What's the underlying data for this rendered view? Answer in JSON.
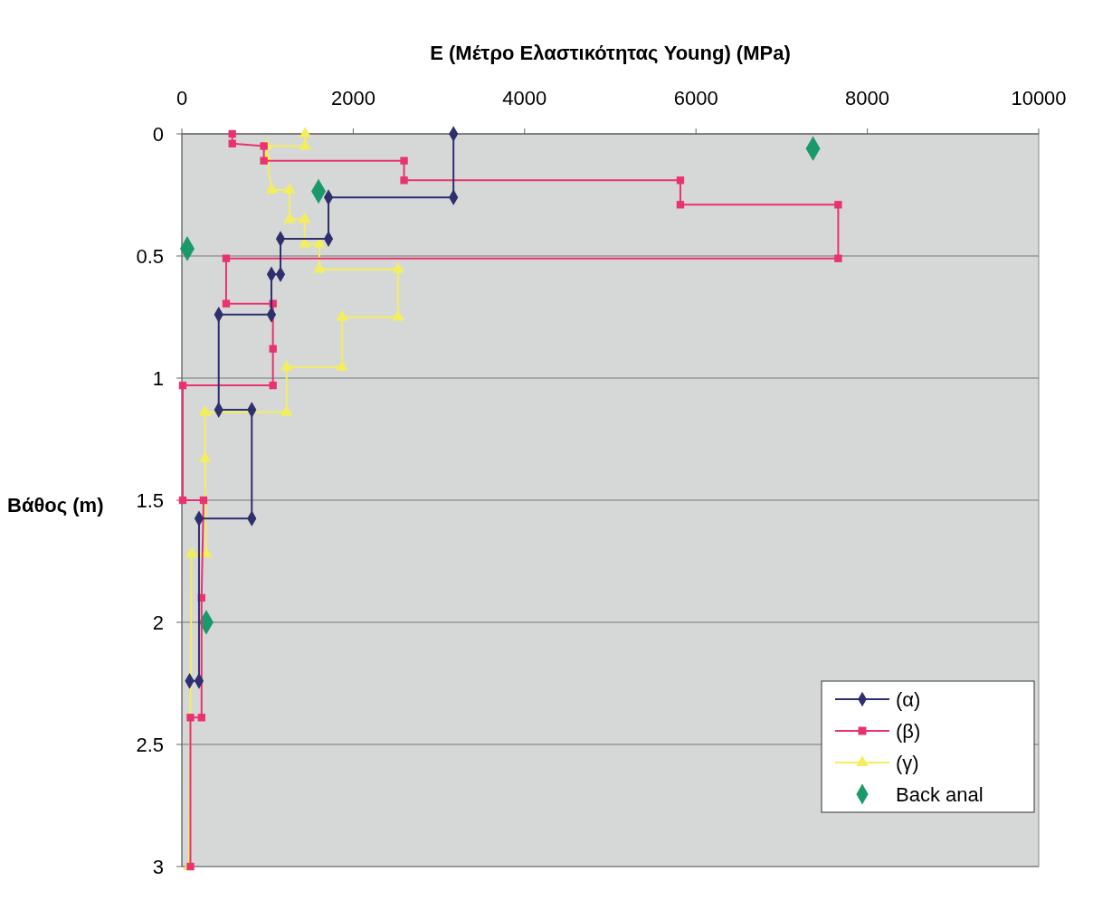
{
  "chart_data": {
    "type": "line",
    "xlabel": "E (Μέτρο Ελαστικότητας Young) (MPa)",
    "ylabel": "Βάθος (m)",
    "xlim": [
      0,
      10000
    ],
    "xticks": [
      0,
      2000,
      4000,
      6000,
      8000,
      10000
    ],
    "ylim": [
      3,
      0
    ],
    "yticks": [
      0,
      0.5,
      1,
      1.5,
      2,
      2.5,
      3
    ],
    "grid": "y",
    "legend": "bottom right",
    "series": [
      {
        "name": "(α)",
        "color": "#2e2f6c",
        "marker": "diamond",
        "x": [
          3170,
          3170,
          1711,
          1711,
          1151,
          1151,
          1045,
          1045,
          430,
          430,
          816,
          816,
          200,
          200,
          90
        ],
        "values": [
          0,
          0.26,
          0.26,
          0.43,
          0.43,
          0.575,
          0.575,
          0.74,
          0.74,
          1.13,
          1.13,
          1.575,
          1.575,
          2.24,
          2.24
        ]
      },
      {
        "name": "(β)",
        "color": "#e8336e",
        "marker": "square",
        "x": [
          588,
          588,
          957,
          957,
          2593,
          2593,
          5818,
          5818,
          7660,
          7660,
          517,
          517,
          1063,
          1063,
          1063,
          10,
          10,
          253,
          230,
          230,
          100,
          100
        ],
        "values": [
          0,
          0.04,
          0.05,
          0.11,
          0.11,
          0.19,
          0.19,
          0.29,
          0.29,
          0.51,
          0.51,
          0.695,
          0.695,
          0.88,
          1.03,
          1.03,
          1.5,
          1.5,
          1.9,
          2.39,
          2.39,
          3
        ]
      },
      {
        "name": "(γ)",
        "color": "#f2ee5e",
        "marker": "triangle",
        "x": [
          1440,
          1440,
          990,
          990,
          1050,
          1257,
          1257,
          1433,
          1433,
          1605,
          1605,
          2524,
          2524,
          1870,
          1870,
          1222,
          1222,
          271,
          271,
          285,
          113,
          85
        ],
        "values": [
          0,
          0.05,
          0.05,
          0.1,
          0.23,
          0.23,
          0.35,
          0.35,
          0.45,
          0.45,
          0.555,
          0.555,
          0.75,
          0.75,
          0.955,
          0.955,
          1.14,
          1.14,
          1.33,
          1.72,
          1.72,
          3
        ]
      },
      {
        "name": "Back anal",
        "type": "scatter",
        "color": "#1a9a6a",
        "marker": "diamond",
        "x": [
          7366,
          1595,
          63,
          285
        ],
        "values": [
          0.06,
          0.235,
          0.47,
          2.0
        ]
      }
    ]
  }
}
